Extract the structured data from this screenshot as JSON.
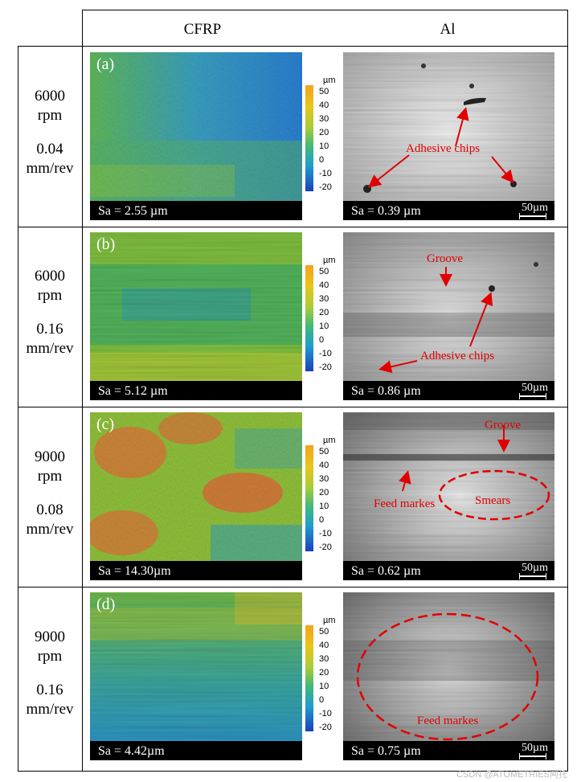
{
  "columns": {
    "cfrp": "CFRP",
    "al": "Al"
  },
  "colorbar": {
    "unit": "µm",
    "ticks": [
      "50",
      "40",
      "30",
      "20",
      "10",
      "0",
      "-10",
      "-20"
    ]
  },
  "scale_bar_label": "50µm",
  "rows": [
    {
      "letter": "(a)",
      "speed": "6000",
      "speed_unit": "rpm",
      "feed": "0.04",
      "feed_unit": "mm/rev",
      "cfrp_sa": "Sa = 2.55 µm",
      "al_sa": "Sa = 0.39 µm",
      "annotations": [
        "Adhesive chips"
      ]
    },
    {
      "letter": "(b)",
      "speed": "6000",
      "speed_unit": "rpm",
      "feed": "0.16",
      "feed_unit": "mm/rev",
      "cfrp_sa": "Sa = 5.12 µm",
      "al_sa": "Sa = 0.86 µm",
      "annotations": [
        "Groove",
        "Adhesive chips"
      ]
    },
    {
      "letter": "(c)",
      "speed": "9000",
      "speed_unit": "rpm",
      "feed": "0.08",
      "feed_unit": "mm/rev",
      "cfrp_sa": "Sa = 14.30µm",
      "al_sa": "Sa = 0.62 µm",
      "annotations": [
        "Groove",
        "Feed markes",
        "Smears"
      ]
    },
    {
      "letter": "(d)",
      "speed": "9000",
      "speed_unit": "rpm",
      "feed": "0.16",
      "feed_unit": "mm/rev",
      "cfrp_sa": "Sa = 4.42µm",
      "al_sa": "Sa = 0.75 µm",
      "annotations": [
        "Feed markes"
      ]
    }
  ],
  "watermark": "CSDN @ATOMETRIES阿托"
}
